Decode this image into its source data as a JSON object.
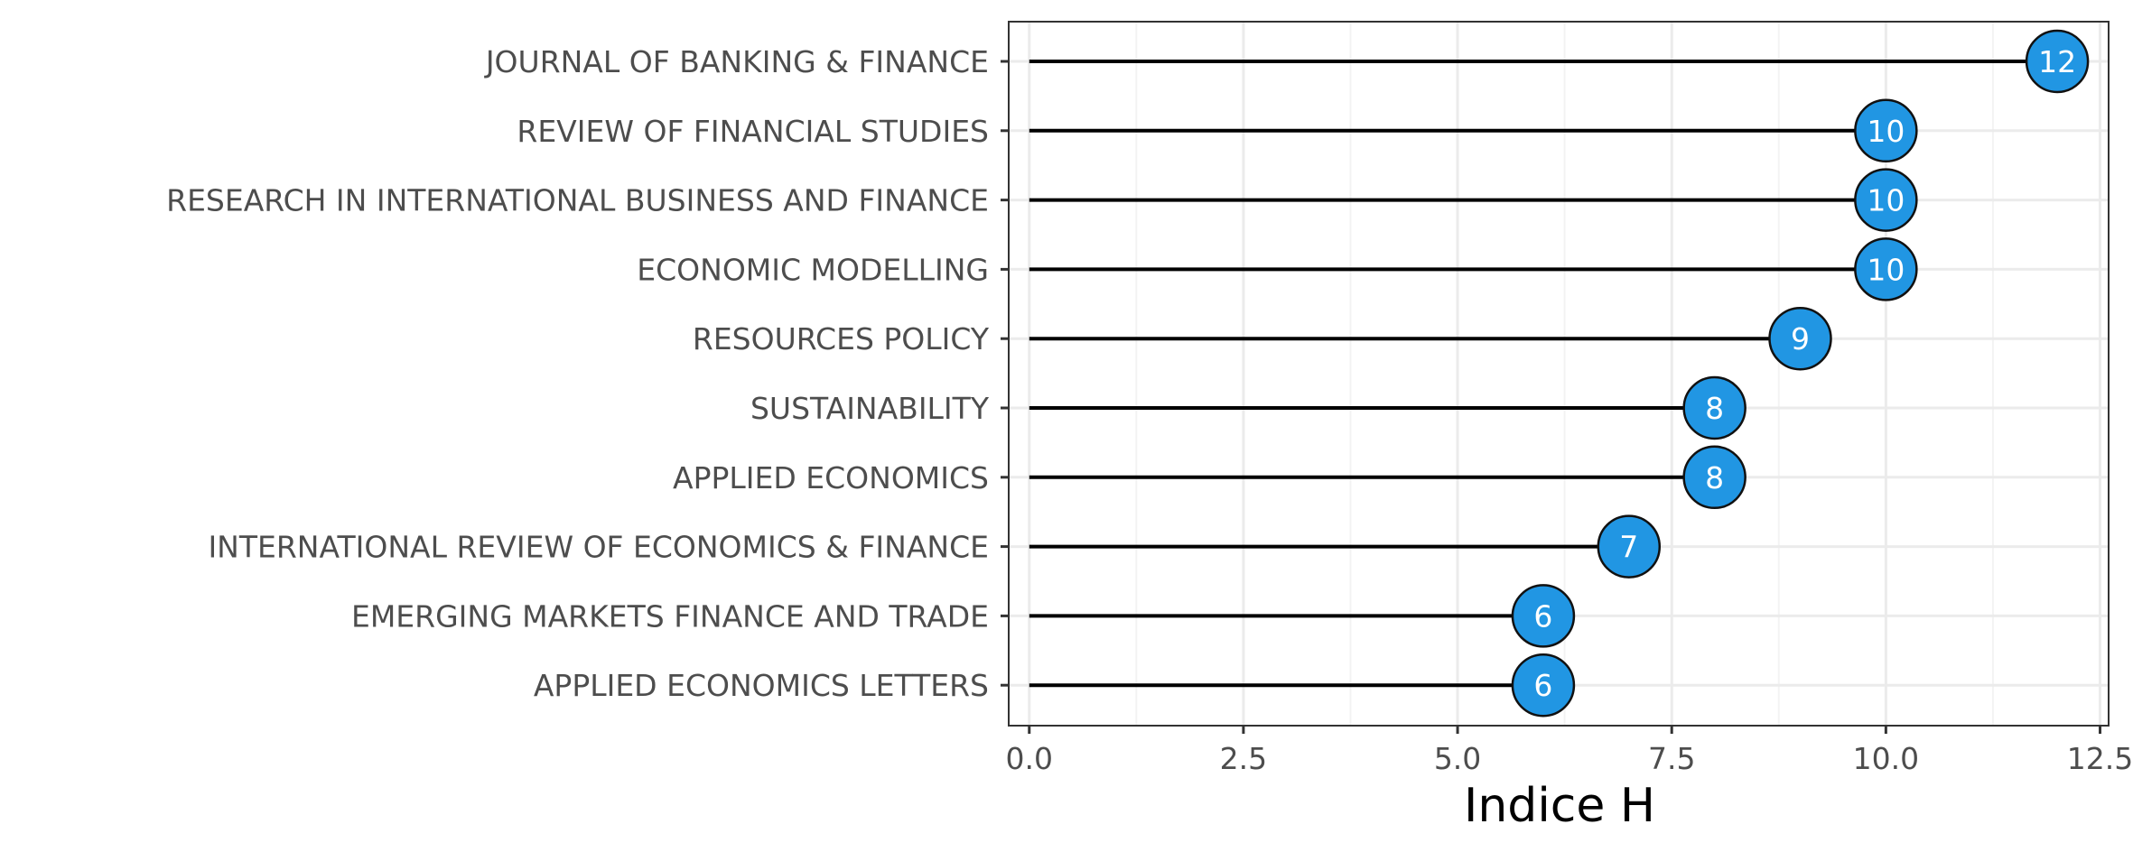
{
  "chart_data": {
    "type": "lollipop",
    "orientation": "horizontal",
    "title": "",
    "xlabel": "Indice H",
    "ylabel": "",
    "xlim": [
      -0.24,
      12.6
    ],
    "xticks": [
      0.0,
      2.5,
      5.0,
      7.5,
      10.0,
      12.5
    ],
    "xtick_labels": [
      "0.0",
      "2.5",
      "5.0",
      "7.5",
      "10.0",
      "12.5"
    ],
    "grid": true,
    "legend": "none",
    "categories": [
      "JOURNAL OF BANKING & FINANCE",
      "REVIEW OF FINANCIAL STUDIES",
      "RESEARCH IN INTERNATIONAL BUSINESS AND FINANCE",
      "ECONOMIC MODELLING",
      "RESOURCES POLICY",
      "SUSTAINABILITY",
      "APPLIED ECONOMICS",
      "INTERNATIONAL REVIEW OF ECONOMICS & FINANCE",
      "EMERGING MARKETS FINANCE AND TRADE",
      "APPLIED ECONOMICS LETTERS"
    ],
    "values": [
      12,
      10,
      10,
      10,
      9,
      8,
      8,
      7,
      6,
      6
    ],
    "value_labels": [
      "12",
      "10",
      "10",
      "10",
      "9",
      "8",
      "8",
      "7",
      "6",
      "6"
    ],
    "colors": {
      "point_fill": "#2196E3",
      "point_stroke": "#111111",
      "stem": "#000000",
      "grid_major": "#EBEBEB",
      "grid_minor": "#F3F3F3",
      "panel_border": "#333333"
    }
  }
}
